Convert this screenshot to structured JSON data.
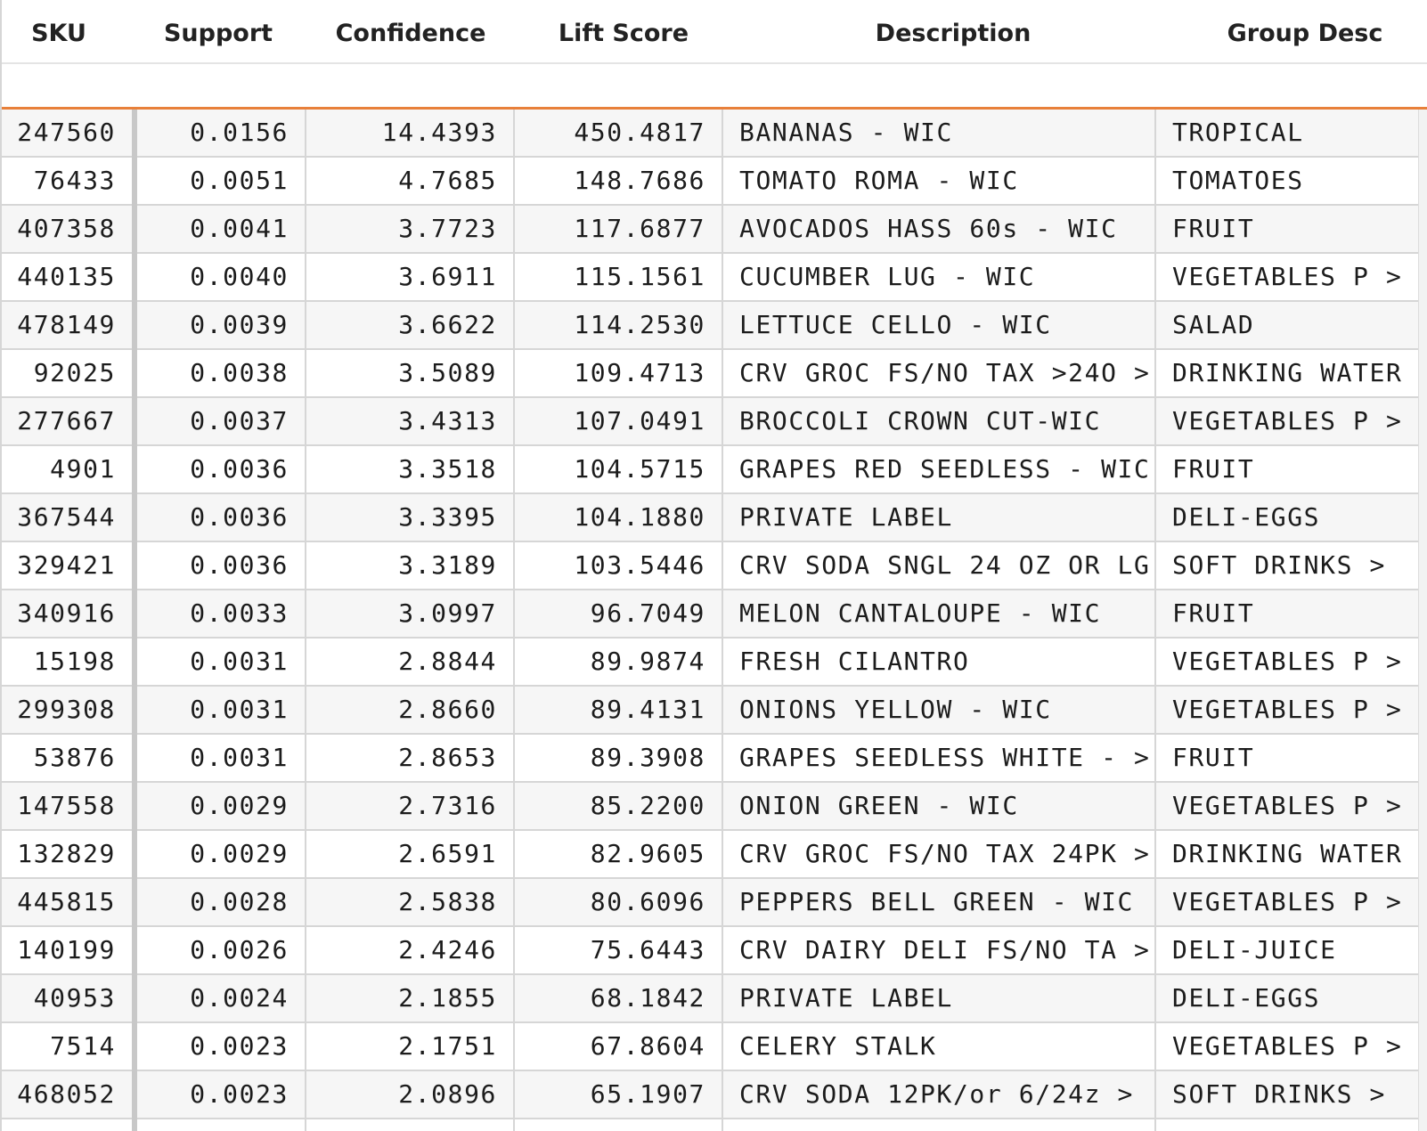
{
  "table": {
    "columns": [
      {
        "key": "sku",
        "label": "SKU"
      },
      {
        "key": "support",
        "label": "Support"
      },
      {
        "key": "confidence",
        "label": "Confidence"
      },
      {
        "key": "lift",
        "label": "Lift Score"
      },
      {
        "key": "description",
        "label": "Description"
      },
      {
        "key": "group",
        "label": "Group Desc"
      }
    ],
    "rows": [
      {
        "sku": "247560",
        "support": "0.0156",
        "confidence": "14.4393",
        "lift": "450.4817",
        "description": "BANANAS - WIC",
        "group": "TROPICAL"
      },
      {
        "sku": "76433",
        "support": "0.0051",
        "confidence": "4.7685",
        "lift": "148.7686",
        "description": "TOMATO ROMA - WIC",
        "group": "TOMATOES"
      },
      {
        "sku": "407358",
        "support": "0.0041",
        "confidence": "3.7723",
        "lift": "117.6877",
        "description": "AVOCADOS HASS 60s - WIC",
        "group": "FRUIT"
      },
      {
        "sku": "440135",
        "support": "0.0040",
        "confidence": "3.6911",
        "lift": "115.1561",
        "description": "CUCUMBER LUG - WIC",
        "group": "VEGETABLES P >"
      },
      {
        "sku": "478149",
        "support": "0.0039",
        "confidence": "3.6622",
        "lift": "114.2530",
        "description": "LETTUCE CELLO - WIC",
        "group": "SALAD"
      },
      {
        "sku": "92025",
        "support": "0.0038",
        "confidence": "3.5089",
        "lift": "109.4713",
        "description": "CRV GROC FS/NO TAX >24O >",
        "group": "DRINKING WATER"
      },
      {
        "sku": "277667",
        "support": "0.0037",
        "confidence": "3.4313",
        "lift": "107.0491",
        "description": "BROCCOLI CROWN CUT-WIC",
        "group": "VEGETABLES P >"
      },
      {
        "sku": "4901",
        "support": "0.0036",
        "confidence": "3.3518",
        "lift": "104.5715",
        "description": "GRAPES RED SEEDLESS - WIC",
        "group": "FRUIT"
      },
      {
        "sku": "367544",
        "support": "0.0036",
        "confidence": "3.3395",
        "lift": "104.1880",
        "description": "PRIVATE LABEL",
        "group": "DELI-EGGS"
      },
      {
        "sku": "329421",
        "support": "0.0036",
        "confidence": "3.3189",
        "lift": "103.5446",
        "description": "CRV SODA SNGL 24 OZ OR LG",
        "group": "SOFT DRINKS  >"
      },
      {
        "sku": "340916",
        "support": "0.0033",
        "confidence": "3.0997",
        "lift": "96.7049",
        "description": "MELON CANTALOUPE - WIC",
        "group": "FRUIT"
      },
      {
        "sku": "15198",
        "support": "0.0031",
        "confidence": "2.8844",
        "lift": "89.9874",
        "description": "FRESH CILANTRO",
        "group": "VEGETABLES P >"
      },
      {
        "sku": "299308",
        "support": "0.0031",
        "confidence": "2.8660",
        "lift": "89.4131",
        "description": "ONIONS YELLOW - WIC",
        "group": "VEGETABLES P >"
      },
      {
        "sku": "53876",
        "support": "0.0031",
        "confidence": "2.8653",
        "lift": "89.3908",
        "description": "GRAPES SEEDLESS WHITE - >",
        "group": "FRUIT"
      },
      {
        "sku": "147558",
        "support": "0.0029",
        "confidence": "2.7316",
        "lift": "85.2200",
        "description": "ONION GREEN - WIC",
        "group": "VEGETABLES P >"
      },
      {
        "sku": "132829",
        "support": "0.0029",
        "confidence": "2.6591",
        "lift": "82.9605",
        "description": "CRV GROC FS/NO TAX 24PK >",
        "group": "DRINKING WATER"
      },
      {
        "sku": "445815",
        "support": "0.0028",
        "confidence": "2.5838",
        "lift": "80.6096",
        "description": "PEPPERS BELL GREEN - WIC",
        "group": "VEGETABLES P >"
      },
      {
        "sku": "140199",
        "support": "0.0026",
        "confidence": "2.4246",
        "lift": "75.6443",
        "description": "CRV DAIRY DELI FS/NO TA >",
        "group": "DELI-JUICE"
      },
      {
        "sku": "40953",
        "support": "0.0024",
        "confidence": "2.1855",
        "lift": "68.1842",
        "description": "PRIVATE LABEL",
        "group": "DELI-EGGS"
      },
      {
        "sku": "7514",
        "support": "0.0023",
        "confidence": "2.1751",
        "lift": "67.8604",
        "description": "CELERY STALK",
        "group": "VEGETABLES P >"
      },
      {
        "sku": "468052",
        "support": "0.0023",
        "confidence": "2.0896",
        "lift": "65.1907",
        "description": "CRV SODA 12PK/or 6/24z  >",
        "group": "SOFT DRINKS  >"
      }
    ]
  },
  "colors": {
    "accent": "#e8803a",
    "gridline": "#d6d6d6",
    "row_alt": "#f6f6f6"
  }
}
